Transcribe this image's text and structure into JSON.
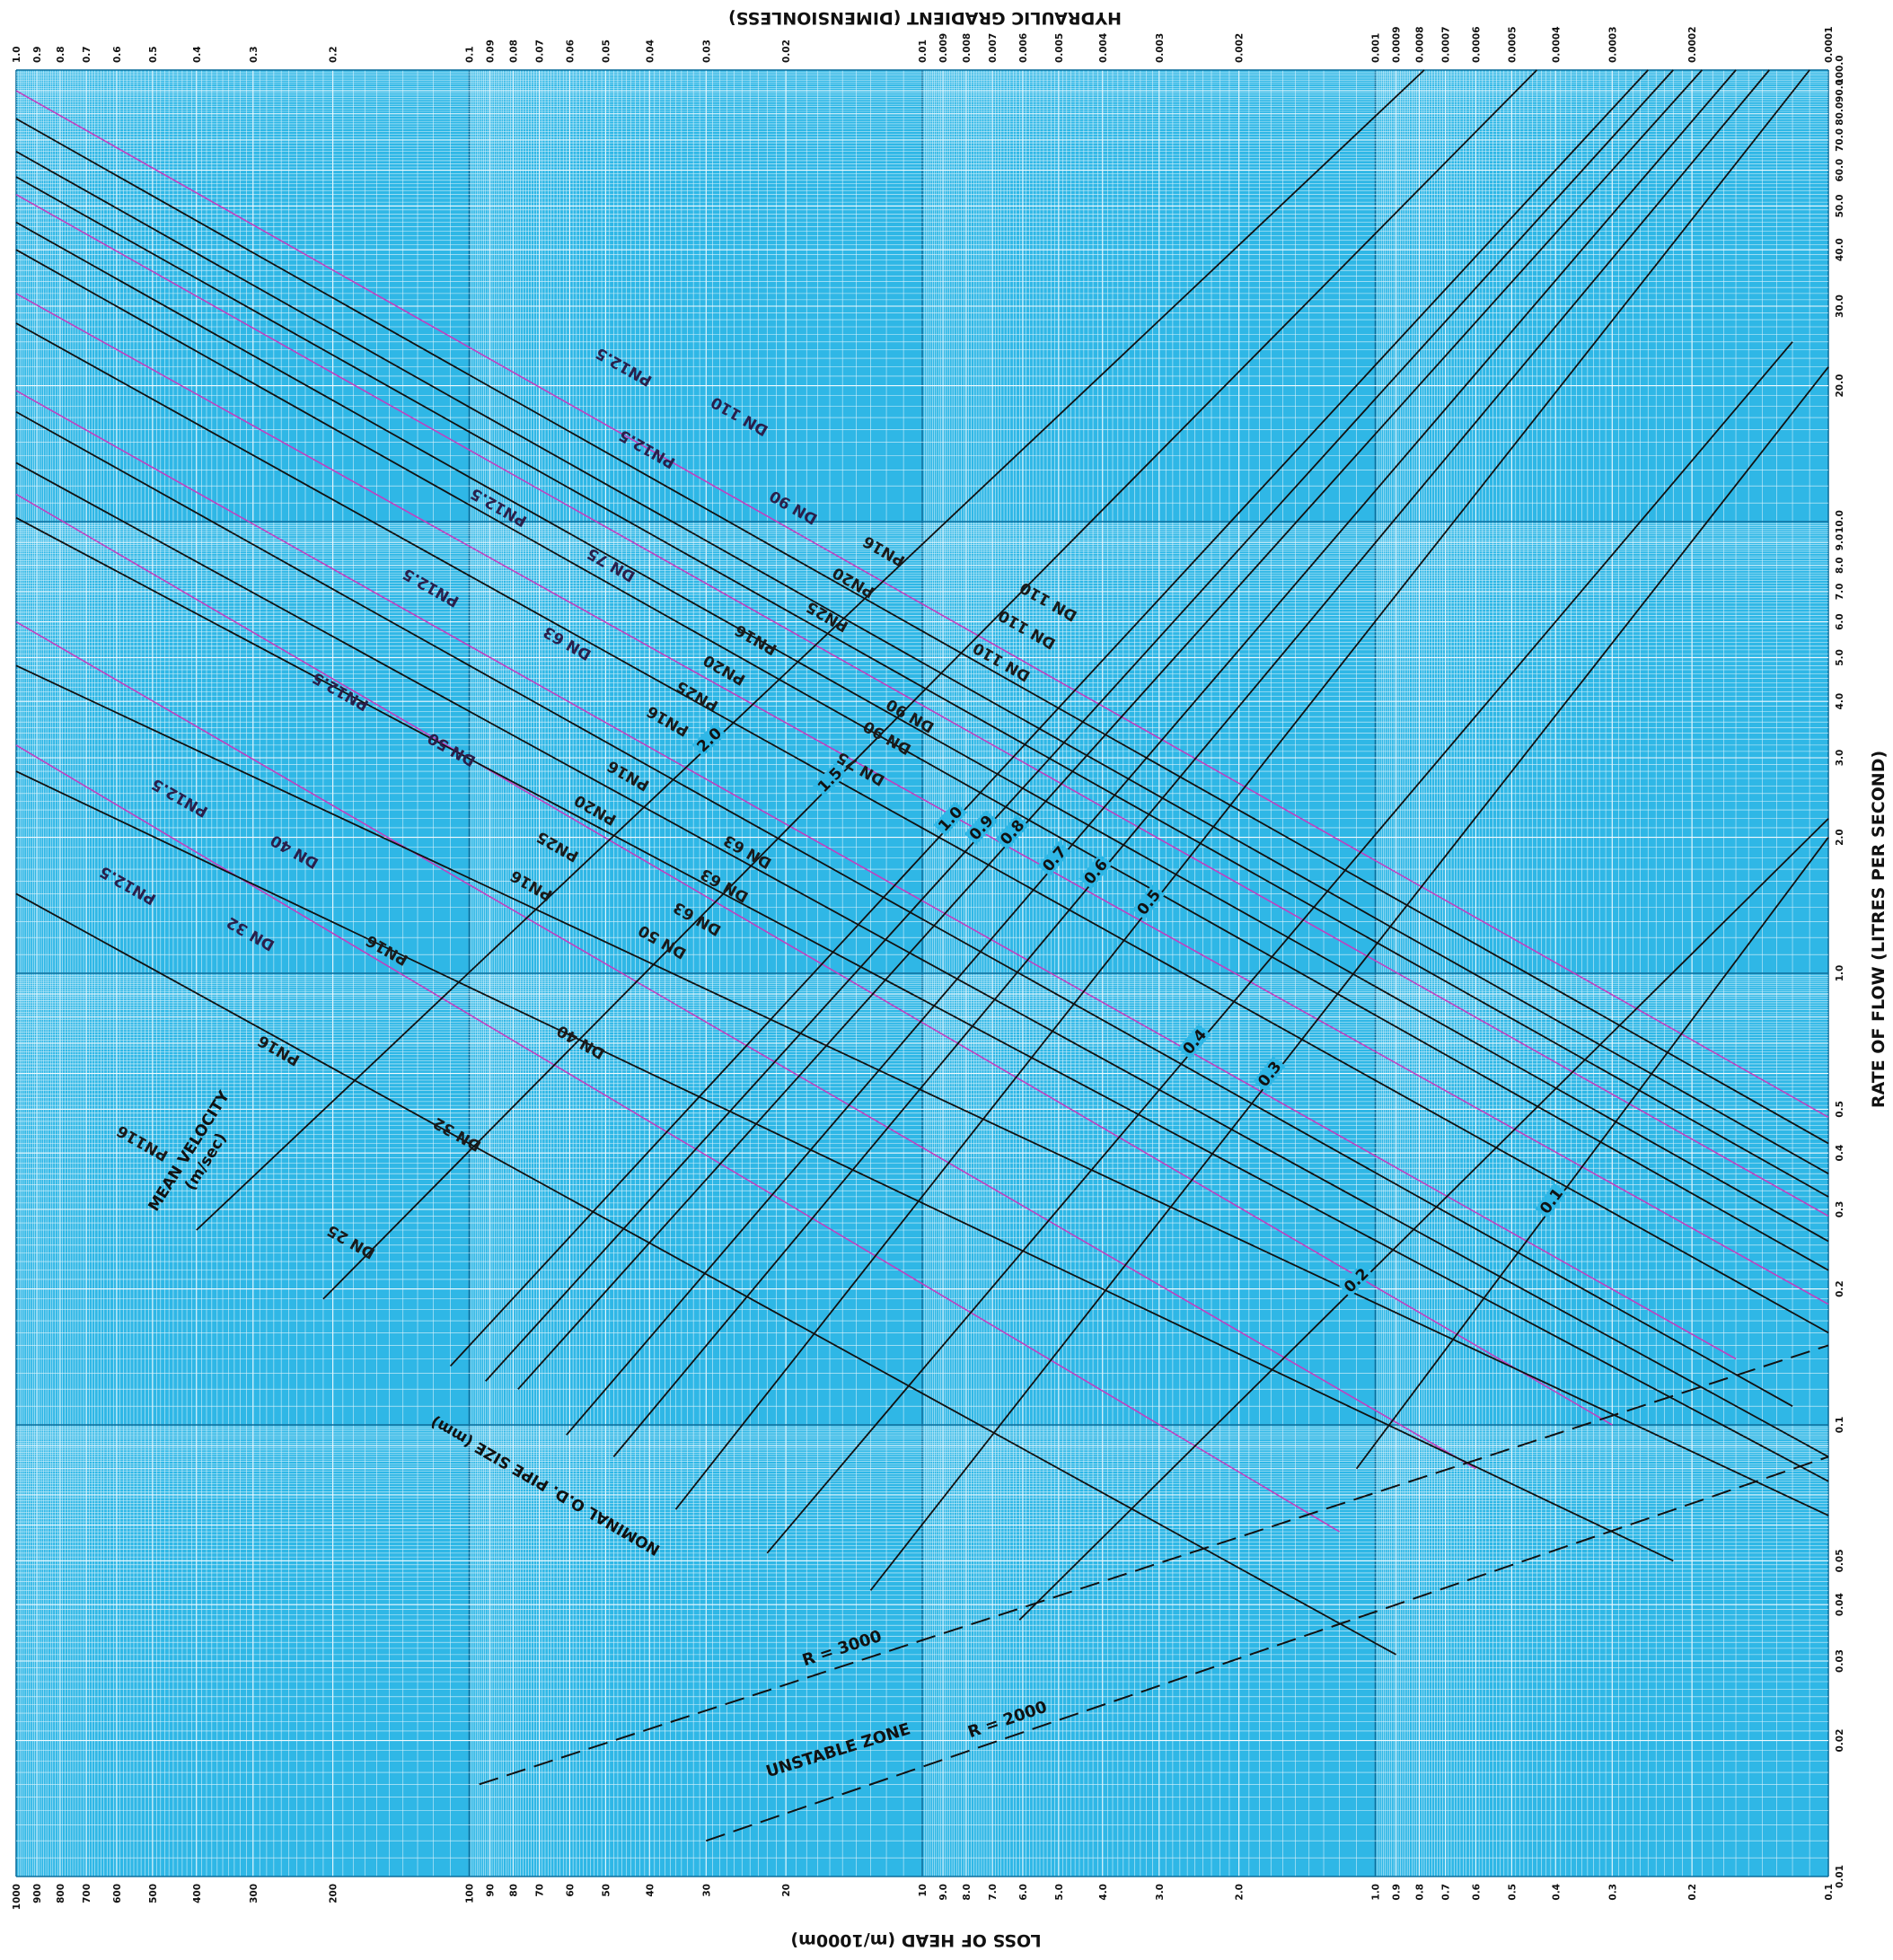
{
  "chart_data": {
    "type": "line",
    "title": "",
    "axes": {
      "bottom_label": "LOSS OF HEAD (m/1000m)",
      "top_label": "HYDRAULIC GRADIENT (DIMENSIONLESS)",
      "right_label": "RATE OF FLOW (LITRES PER SECOND)",
      "x_scale": "log",
      "y_scale": "log",
      "x_range": [
        0.1,
        1000
      ],
      "y_range": [
        0.01,
        100
      ],
      "x_reversed": true,
      "grid": true,
      "bottom_ticks": [
        "1000",
        "900",
        "800",
        "700",
        "600",
        "500",
        "400",
        "300",
        "200",
        "100",
        "90",
        "80",
        "70",
        "60",
        "50",
        "40",
        "30",
        "20",
        "10",
        "9.0",
        "8.0",
        "7.0",
        "6.0",
        "5.0",
        "4.0",
        "3.0",
        "2.0",
        "1.0",
        "0.9",
        "0.8",
        "0.7",
        "0.6",
        "0.5",
        "0.4",
        "0.3",
        "0.2",
        "0.1"
      ],
      "top_ticks": [
        "1.0",
        "0.9",
        "0.8",
        "0.7",
        "0.6",
        "0.5",
        "0.4",
        "0.3",
        "0.2",
        "0.1",
        "0.09",
        "0.08",
        "0.07",
        "0.06",
        "0.05",
        "0.04",
        "0.03",
        "0.02",
        "0.01",
        "0.009",
        "0.008",
        "0.007",
        "0.006",
        "0.005",
        "0.004",
        "0.003",
        "0.002",
        "0.001",
        "0.0009",
        "0.0008",
        "0.0007",
        "0.0006",
        "0.0005",
        "0.0004",
        "0.0003",
        "0.0002",
        "0.0001"
      ],
      "right_ticks": [
        "0.01",
        "0.02",
        "0.03",
        "0.04",
        "0.05",
        "0.1",
        "0.2",
        "0.3",
        "0.4",
        "0.5",
        "1.0",
        "2.0",
        "3.0",
        "4.0",
        "5.0",
        "6.0",
        "7.0",
        "8.0",
        "9.0",
        "10.0",
        "20.0",
        "30.0",
        "40.0",
        "50.0",
        "60.0",
        "70.0",
        "80.0",
        "90.0",
        "100.0"
      ]
    },
    "series": [
      {
        "label": "DN 110",
        "sublabel": "PN12.5",
        "color": "#c040c0",
        "points": [
          [
            1000,
            90
          ],
          [
            0.1,
            0.48
          ]
        ]
      },
      {
        "label": "DN 110",
        "color": "#111111",
        "points": [
          [
            1000,
            78
          ],
          [
            0.1,
            0.42
          ]
        ]
      },
      {
        "label": "DN 110",
        "color": "#111111",
        "points": [
          [
            1000,
            66
          ],
          [
            0.1,
            0.36
          ]
        ]
      },
      {
        "label": "DN 110",
        "color": "#111111",
        "points": [
          [
            1000,
            58
          ],
          [
            0.1,
            0.32
          ]
        ]
      },
      {
        "label": "DN 90",
        "sublabel": "PN12.5",
        "color": "#c040c0",
        "points": [
          [
            1000,
            53
          ],
          [
            0.1,
            0.29
          ]
        ]
      },
      {
        "label": "DN 90",
        "color": "#111111",
        "points": [
          [
            1000,
            46
          ],
          [
            0.1,
            0.255
          ]
        ]
      },
      {
        "label": "DN 90",
        "color": "#111111",
        "points": [
          [
            1000,
            40
          ],
          [
            0.1,
            0.22
          ]
        ]
      },
      {
        "label": "DN 75",
        "sublabel": "PN12.5",
        "color": "#c040c0",
        "points": [
          [
            1000,
            32
          ],
          [
            0.1,
            0.185
          ]
        ]
      },
      {
        "label": "DN 75",
        "color": "#111111",
        "points": [
          [
            1000,
            27.5
          ],
          [
            0.1,
            0.16
          ]
        ]
      },
      {
        "label": "DN 63",
        "sublabel": "PN12.5",
        "color": "#c040c0",
        "points": [
          [
            1000,
            19.5
          ],
          [
            0.16,
            0.14
          ]
        ]
      },
      {
        "label": "DN 63",
        "color": "#111111",
        "points": [
          [
            1000,
            17.5
          ],
          [
            0.12,
            0.11
          ]
        ]
      },
      {
        "label": "DN 63",
        "color": "#111111",
        "points": [
          [
            1000,
            13.5
          ],
          [
            0.1,
            0.085
          ]
        ]
      },
      {
        "label": "DN 50",
        "sublabel": "PN12.5",
        "color": "#c040c0",
        "points": [
          [
            1000,
            11.5
          ],
          [
            0.3,
            0.1
          ]
        ]
      },
      {
        "label": "DN 50",
        "color": "#111111",
        "points": [
          [
            1000,
            10.2
          ],
          [
            0.1,
            0.075
          ]
        ]
      },
      {
        "label": "DN 40",
        "sublabel": "PN12.5",
        "color": "#c040c0",
        "points": [
          [
            1000,
            6.0
          ],
          [
            0.6,
            0.08
          ]
        ]
      },
      {
        "label": "DN 40",
        "color": "#111111",
        "points": [
          [
            1000,
            4.8
          ],
          [
            0.1,
            0.063
          ]
        ]
      },
      {
        "label": "DN 32",
        "sublabel": "PN12.5",
        "color": "#c040c0",
        "points": [
          [
            1000,
            3.2
          ],
          [
            1.2,
            0.058
          ]
        ]
      },
      {
        "label": "DN 32",
        "color": "#111111",
        "points": [
          [
            1000,
            2.8
          ],
          [
            0.22,
            0.05
          ]
        ]
      },
      {
        "label": "DN 25",
        "color": "#111111",
        "points": [
          [
            1000,
            1.5
          ],
          [
            0.9,
            0.031
          ]
        ]
      }
    ],
    "velocity_lines": [
      {
        "label": "2.0",
        "points": [
          [
            400,
            0.27
          ],
          [
            0.78,
            100
          ]
        ]
      },
      {
        "label": "1.5",
        "points": [
          [
            210,
            0.19
          ],
          [
            0.44,
            100
          ]
        ]
      },
      {
        "label": "1.0",
        "points": [
          [
            110,
            0.135
          ],
          [
            0.25,
            100
          ]
        ]
      },
      {
        "label": "0.9",
        "points": [
          [
            92,
            0.125
          ],
          [
            0.22,
            100
          ]
        ]
      },
      {
        "label": "0.8",
        "points": [
          [
            78,
            0.12
          ],
          [
            0.19,
            100
          ]
        ]
      },
      {
        "label": "0.7",
        "points": [
          [
            61,
            0.095
          ],
          [
            0.16,
            100
          ]
        ]
      },
      {
        "label": "0.6",
        "points": [
          [
            48,
            0.085
          ],
          [
            0.135,
            100
          ]
        ]
      },
      {
        "label": "0.5",
        "points": [
          [
            35,
            0.065
          ],
          [
            0.11,
            100
          ]
        ]
      },
      {
        "label": "0.4",
        "points": [
          [
            22,
            0.052
          ],
          [
            0.12,
            25
          ]
        ]
      },
      {
        "label": "0.3",
        "points": [
          [
            13,
            0.043
          ],
          [
            0.1,
            22
          ]
        ]
      },
      {
        "label": "0.2",
        "points": [
          [
            6.1,
            0.037
          ],
          [
            0.1,
            2.2
          ]
        ]
      },
      {
        "label": "0.1",
        "points": [
          [
            1.1,
            0.08
          ],
          [
            0.1,
            2.0
          ]
        ]
      }
    ],
    "velocity_title": "MEAN VELOCITY",
    "velocity_unit": "(m/sec)",
    "pipe_size_title": "NOMINAL O.D. PIPE SIZE (mm)",
    "boundary_lines": [
      {
        "label": "R = 3000",
        "points": [
          [
            95,
            0.016
          ],
          [
            0.1,
            0.15
          ]
        ]
      },
      {
        "label": "R = 2000",
        "points": [
          [
            30,
            0.012
          ],
          [
            0.1,
            0.085
          ]
        ]
      }
    ],
    "zone_label": "UNSTABLE ZONE",
    "series_tags": [
      {
        "text": "DN 110",
        "x": 25,
        "y": 17.5,
        "pink": true
      },
      {
        "text": "PN12.5",
        "x": 45,
        "y": 22.5,
        "pink": true
      },
      {
        "text": "DN 90",
        "x": 19,
        "y": 11.0,
        "pink": true
      },
      {
        "text": "PN12.5",
        "x": 40,
        "y": 14.8,
        "pink": true
      },
      {
        "text": "DN 75",
        "x": 48,
        "y": 8.2,
        "pink": true
      },
      {
        "text": "PN12.5",
        "x": 85,
        "y": 11.0,
        "pink": true
      },
      {
        "text": "DN 63",
        "x": 60,
        "y": 5.5,
        "pink": true
      },
      {
        "text": "PN12.5",
        "x": 120,
        "y": 7.3,
        "pink": true
      },
      {
        "text": "DN 50",
        "x": 108,
        "y": 3.2,
        "pink": true
      },
      {
        "text": "PN12.5",
        "x": 190,
        "y": 4.3,
        "pink": true
      },
      {
        "text": "DN 40",
        "x": 240,
        "y": 1.9,
        "pink": true
      },
      {
        "text": "PN12.5",
        "x": 430,
        "y": 2.5,
        "pink": true
      },
      {
        "text": "DN 32",
        "x": 300,
        "y": 1.25,
        "pink": true
      },
      {
        "text": "PN12.5",
        "x": 560,
        "y": 1.6,
        "pink": true
      },
      {
        "text": "PN16",
        "x": 12,
        "y": 8.8,
        "pink": false
      },
      {
        "text": "PN20",
        "x": 14,
        "y": 7.5,
        "pink": false
      },
      {
        "text": "PN25",
        "x": 16,
        "y": 6.3,
        "pink": false
      },
      {
        "text": "DN 110",
        "x": 5.2,
        "y": 6.8,
        "pink": false
      },
      {
        "text": "DN 110",
        "x": 5.8,
        "y": 5.9,
        "pink": false
      },
      {
        "text": "DN 110",
        "x": 6.6,
        "y": 5.0,
        "pink": false
      },
      {
        "text": "PN16",
        "x": 23,
        "y": 5.6,
        "pink": false
      },
      {
        "text": "PN20",
        "x": 27,
        "y": 4.8,
        "pink": false
      },
      {
        "text": "PN25",
        "x": 31,
        "y": 4.2,
        "pink": false
      },
      {
        "text": "PN16",
        "x": 36,
        "y": 3.7,
        "pink": false
      },
      {
        "text": "DN 90",
        "x": 10.5,
        "y": 3.8,
        "pink": false
      },
      {
        "text": "DN 90",
        "x": 11.8,
        "y": 3.4,
        "pink": false
      },
      {
        "text": "DN 75",
        "x": 13.5,
        "y": 2.9,
        "pink": false
      },
      {
        "text": "PN16",
        "x": 44,
        "y": 2.8,
        "pink": false
      },
      {
        "text": "PN20",
        "x": 52,
        "y": 2.35,
        "pink": false
      },
      {
        "text": "PN25",
        "x": 63,
        "y": 1.95,
        "pink": false
      },
      {
        "text": "PN16",
        "x": 72,
        "y": 1.6,
        "pink": false
      },
      {
        "text": "DN 63",
        "x": 24,
        "y": 1.9,
        "pink": false
      },
      {
        "text": "DN 63",
        "x": 27,
        "y": 1.6,
        "pink": false
      },
      {
        "text": "DN 63",
        "x": 31,
        "y": 1.35,
        "pink": false
      },
      {
        "text": "DN 50",
        "x": 37,
        "y": 1.2,
        "pink": false
      },
      {
        "text": "PN16",
        "x": 150,
        "y": 1.15,
        "pink": false
      },
      {
        "text": "DN 40",
        "x": 56,
        "y": 0.72,
        "pink": false
      },
      {
        "text": "PN16",
        "x": 260,
        "y": 0.69,
        "pink": false
      },
      {
        "text": "DN 32",
        "x": 105,
        "y": 0.45,
        "pink": false
      },
      {
        "text": "PN116",
        "x": 520,
        "y": 0.43,
        "pink": false
      },
      {
        "text": "DN 25",
        "x": 180,
        "y": 0.26,
        "pink": false
      }
    ]
  }
}
